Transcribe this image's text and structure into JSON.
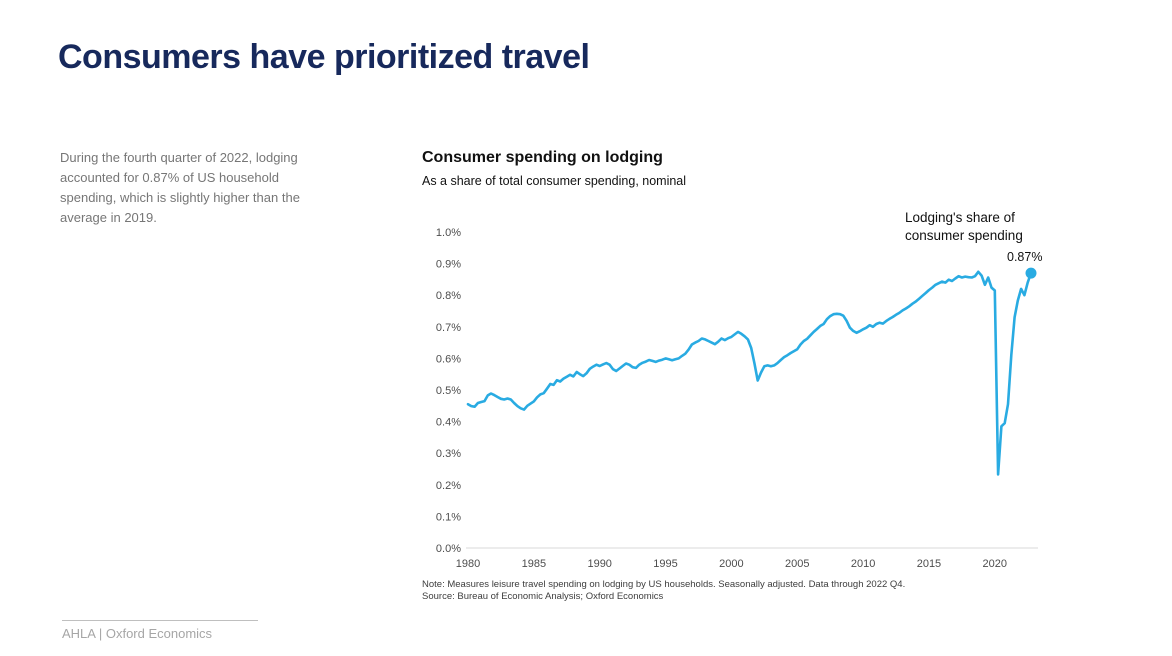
{
  "slide": {
    "title": "Consumers have prioritized travel",
    "body_text": "During the fourth quarter of 2022, lodging accounted for 0.87% of US household spending, which is slightly higher than the average in 2019.",
    "footer": "AHLA | Oxford Economics"
  },
  "colors": {
    "title_navy": "#17295C",
    "line_blue": "#29ABE2",
    "axis_gray": "#4D4D4D",
    "baseline_gray": "#D9D9D9",
    "body_gray": "#767676",
    "footer_gray": "#A6A6A6"
  },
  "chart": {
    "annotation_line1": "Lodging's share of",
    "annotation_line2": "consumer spending",
    "endpoint_label": "0.87%",
    "note": "Note: Measures leisure travel spending on lodging by US households. Seasonally adjusted. Data through 2022 Q4.",
    "source": "Source: Bureau of Economic Analysis; Oxford Economics"
  },
  "chart_data": {
    "type": "line",
    "title": "Consumer spending on lodging",
    "subtitle": "As a share of total consumer spending, nominal",
    "xlabel": "",
    "ylabel": "",
    "unit": "percent of total consumer spending",
    "xlim": [
      1980,
      2023.5
    ],
    "ylim": [
      0,
      1.0
    ],
    "grid": false,
    "legend": "none",
    "x_ticks": [
      1980,
      1985,
      1990,
      1995,
      2000,
      2005,
      2010,
      2015,
      2020
    ],
    "y_ticks": [
      {
        "label": "0.0%",
        "value": 0.0
      },
      {
        "label": "0.1%",
        "value": 0.1
      },
      {
        "label": "0.2%",
        "value": 0.2
      },
      {
        "label": "0.3%",
        "value": 0.3
      },
      {
        "label": "0.4%",
        "value": 0.4
      },
      {
        "label": "0.5%",
        "value": 0.5
      },
      {
        "label": "0.6%",
        "value": 0.6
      },
      {
        "label": "0.7%",
        "value": 0.7
      },
      {
        "label": "0.8%",
        "value": 0.8
      },
      {
        "label": "0.9%",
        "value": 0.9
      },
      {
        "label": "1.0%",
        "value": 1.0
      }
    ],
    "series": [
      {
        "name": "Lodging's share of consumer spending",
        "color": "#29ABE2",
        "frequency": "quarterly",
        "points": [
          [
            1980.0,
            0.455
          ],
          [
            1980.25,
            0.449
          ],
          [
            1980.5,
            0.447
          ],
          [
            1980.75,
            0.459
          ],
          [
            1981.0,
            0.462
          ],
          [
            1981.25,
            0.465
          ],
          [
            1981.5,
            0.483
          ],
          [
            1981.75,
            0.489
          ],
          [
            1982.0,
            0.484
          ],
          [
            1982.25,
            0.478
          ],
          [
            1982.5,
            0.472
          ],
          [
            1982.75,
            0.47
          ],
          [
            1983.0,
            0.473
          ],
          [
            1983.25,
            0.47
          ],
          [
            1983.5,
            0.459
          ],
          [
            1983.75,
            0.449
          ],
          [
            1984.0,
            0.442
          ],
          [
            1984.25,
            0.438
          ],
          [
            1984.5,
            0.45
          ],
          [
            1984.75,
            0.457
          ],
          [
            1985.0,
            0.464
          ],
          [
            1985.25,
            0.477
          ],
          [
            1985.5,
            0.486
          ],
          [
            1985.75,
            0.49
          ],
          [
            1986.0,
            0.504
          ],
          [
            1986.25,
            0.519
          ],
          [
            1986.5,
            0.516
          ],
          [
            1986.75,
            0.531
          ],
          [
            1987.0,
            0.527
          ],
          [
            1987.25,
            0.536
          ],
          [
            1987.5,
            0.542
          ],
          [
            1987.75,
            0.548
          ],
          [
            1988.0,
            0.543
          ],
          [
            1988.25,
            0.557
          ],
          [
            1988.5,
            0.55
          ],
          [
            1988.75,
            0.544
          ],
          [
            1989.0,
            0.553
          ],
          [
            1989.25,
            0.567
          ],
          [
            1989.5,
            0.574
          ],
          [
            1989.75,
            0.58
          ],
          [
            1990.0,
            0.576
          ],
          [
            1990.25,
            0.581
          ],
          [
            1990.5,
            0.585
          ],
          [
            1990.75,
            0.58
          ],
          [
            1991.0,
            0.566
          ],
          [
            1991.25,
            0.56
          ],
          [
            1991.5,
            0.568
          ],
          [
            1991.75,
            0.576
          ],
          [
            1992.0,
            0.584
          ],
          [
            1992.25,
            0.58
          ],
          [
            1992.5,
            0.572
          ],
          [
            1992.75,
            0.57
          ],
          [
            1993.0,
            0.58
          ],
          [
            1993.25,
            0.586
          ],
          [
            1993.5,
            0.59
          ],
          [
            1993.75,
            0.595
          ],
          [
            1994.0,
            0.592
          ],
          [
            1994.25,
            0.589
          ],
          [
            1994.5,
            0.593
          ],
          [
            1994.75,
            0.596
          ],
          [
            1995.0,
            0.6
          ],
          [
            1995.25,
            0.597
          ],
          [
            1995.5,
            0.594
          ],
          [
            1995.75,
            0.597
          ],
          [
            1996.0,
            0.6
          ],
          [
            1996.25,
            0.608
          ],
          [
            1996.5,
            0.615
          ],
          [
            1996.75,
            0.628
          ],
          [
            1997.0,
            0.644
          ],
          [
            1997.25,
            0.65
          ],
          [
            1997.5,
            0.655
          ],
          [
            1997.75,
            0.663
          ],
          [
            1998.0,
            0.66
          ],
          [
            1998.25,
            0.655
          ],
          [
            1998.5,
            0.65
          ],
          [
            1998.75,
            0.645
          ],
          [
            1999.0,
            0.653
          ],
          [
            1999.25,
            0.663
          ],
          [
            1999.5,
            0.658
          ],
          [
            1999.75,
            0.664
          ],
          [
            2000.0,
            0.668
          ],
          [
            2000.25,
            0.676
          ],
          [
            2000.5,
            0.684
          ],
          [
            2000.75,
            0.678
          ],
          [
            2001.0,
            0.67
          ],
          [
            2001.25,
            0.66
          ],
          [
            2001.5,
            0.633
          ],
          [
            2001.75,
            0.585
          ],
          [
            2002.0,
            0.53
          ],
          [
            2002.25,
            0.555
          ],
          [
            2002.5,
            0.575
          ],
          [
            2002.75,
            0.578
          ],
          [
            2003.0,
            0.575
          ],
          [
            2003.25,
            0.578
          ],
          [
            2003.5,
            0.585
          ],
          [
            2003.75,
            0.595
          ],
          [
            2004.0,
            0.604
          ],
          [
            2004.25,
            0.61
          ],
          [
            2004.5,
            0.617
          ],
          [
            2004.75,
            0.623
          ],
          [
            2005.0,
            0.629
          ],
          [
            2005.25,
            0.644
          ],
          [
            2005.5,
            0.655
          ],
          [
            2005.75,
            0.662
          ],
          [
            2006.0,
            0.673
          ],
          [
            2006.25,
            0.684
          ],
          [
            2006.5,
            0.693
          ],
          [
            2006.75,
            0.703
          ],
          [
            2007.0,
            0.709
          ],
          [
            2007.25,
            0.724
          ],
          [
            2007.5,
            0.734
          ],
          [
            2007.75,
            0.74
          ],
          [
            2008.0,
            0.741
          ],
          [
            2008.25,
            0.74
          ],
          [
            2008.5,
            0.735
          ],
          [
            2008.75,
            0.719
          ],
          [
            2009.0,
            0.697
          ],
          [
            2009.25,
            0.687
          ],
          [
            2009.5,
            0.681
          ],
          [
            2009.75,
            0.686
          ],
          [
            2010.0,
            0.692
          ],
          [
            2010.25,
            0.697
          ],
          [
            2010.5,
            0.705
          ],
          [
            2010.75,
            0.7
          ],
          [
            2011.0,
            0.709
          ],
          [
            2011.25,
            0.713
          ],
          [
            2011.5,
            0.71
          ],
          [
            2011.75,
            0.718
          ],
          [
            2012.0,
            0.725
          ],
          [
            2012.25,
            0.731
          ],
          [
            2012.5,
            0.738
          ],
          [
            2012.75,
            0.744
          ],
          [
            2013.0,
            0.752
          ],
          [
            2013.25,
            0.758
          ],
          [
            2013.5,
            0.765
          ],
          [
            2013.75,
            0.773
          ],
          [
            2014.0,
            0.78
          ],
          [
            2014.25,
            0.789
          ],
          [
            2014.5,
            0.798
          ],
          [
            2014.75,
            0.807
          ],
          [
            2015.0,
            0.816
          ],
          [
            2015.25,
            0.824
          ],
          [
            2015.5,
            0.833
          ],
          [
            2015.75,
            0.838
          ],
          [
            2016.0,
            0.843
          ],
          [
            2016.25,
            0.84
          ],
          [
            2016.5,
            0.849
          ],
          [
            2016.75,
            0.845
          ],
          [
            2017.0,
            0.853
          ],
          [
            2017.25,
            0.86
          ],
          [
            2017.5,
            0.856
          ],
          [
            2017.75,
            0.859
          ],
          [
            2018.0,
            0.857
          ],
          [
            2018.25,
            0.856
          ],
          [
            2018.5,
            0.86
          ],
          [
            2018.75,
            0.874
          ],
          [
            2019.0,
            0.862
          ],
          [
            2019.25,
            0.833
          ],
          [
            2019.5,
            0.856
          ],
          [
            2019.75,
            0.824
          ],
          [
            2020.0,
            0.815
          ],
          [
            2020.25,
            0.233
          ],
          [
            2020.5,
            0.385
          ],
          [
            2020.75,
            0.395
          ],
          [
            2021.0,
            0.455
          ],
          [
            2021.25,
            0.61
          ],
          [
            2021.5,
            0.73
          ],
          [
            2021.75,
            0.783
          ],
          [
            2022.0,
            0.82
          ],
          [
            2022.25,
            0.8
          ],
          [
            2022.5,
            0.84
          ],
          [
            2022.75,
            0.87
          ]
        ]
      }
    ],
    "endpoint": {
      "x": 2022.75,
      "y": 0.87,
      "label": "0.87%"
    },
    "annotations": [
      "Lodging's share of consumer spending",
      "0.87%"
    ]
  }
}
